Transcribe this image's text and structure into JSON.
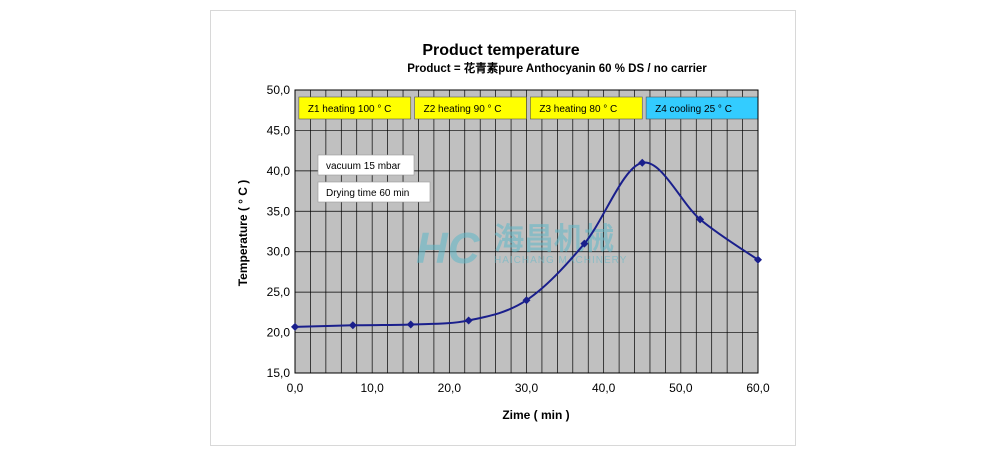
{
  "chart_data": {
    "type": "line",
    "title": "Product temperature",
    "subtitle": "Product = 花青素pure Anthocyanin 60 % DS / no carrier",
    "xlabel": "Zime ( min )",
    "ylabel": "Temperature ( ° C )",
    "xlim": [
      0,
      60
    ],
    "ylim": [
      15,
      50
    ],
    "xticks": [
      0,
      10,
      20,
      30,
      40,
      50,
      60
    ],
    "xtick_labels": [
      "0,0",
      "10,0",
      "20,0",
      "30,0",
      "40,0",
      "50,0",
      "60,0"
    ],
    "yticks": [
      15,
      20,
      25,
      30,
      35,
      40,
      45,
      50
    ],
    "ytick_labels": [
      "15,0",
      "20,0",
      "25,0",
      "30,0",
      "35,0",
      "40,0",
      "45,0",
      "50,0"
    ],
    "grid": true,
    "series": [
      {
        "color": "#1a1f8c",
        "x": [
          0,
          7.5,
          15,
          22.5,
          30,
          37.5,
          45,
          52.5,
          60
        ],
        "y": [
          20.7,
          20.9,
          21.0,
          21.5,
          24.0,
          31.0,
          41.0,
          34.0,
          29.0
        ]
      }
    ],
    "zones": [
      {
        "label": "Z1  heating 100 °  C",
        "from": 0.5,
        "to": 15,
        "color": "#ffff00"
      },
      {
        "label": "Z2  heating 90 °  C",
        "from": 15.5,
        "to": 30,
        "color": "#ffff00"
      },
      {
        "label": "Z3  heating 80 °  C",
        "from": 30.5,
        "to": 45,
        "color": "#ffff00"
      },
      {
        "label": "Z4  cooling 25 °  C",
        "from": 45.5,
        "to": 60,
        "color": "#33ccff"
      }
    ],
    "notes": [
      "vacuum 15 mbar",
      "Drying time 60 min"
    ],
    "plot_background": "#c0c0c0"
  },
  "watermark": {
    "logo": "HC",
    "cn_text": "海昌机械",
    "en_text": "HAICHANG MACHINERY"
  }
}
